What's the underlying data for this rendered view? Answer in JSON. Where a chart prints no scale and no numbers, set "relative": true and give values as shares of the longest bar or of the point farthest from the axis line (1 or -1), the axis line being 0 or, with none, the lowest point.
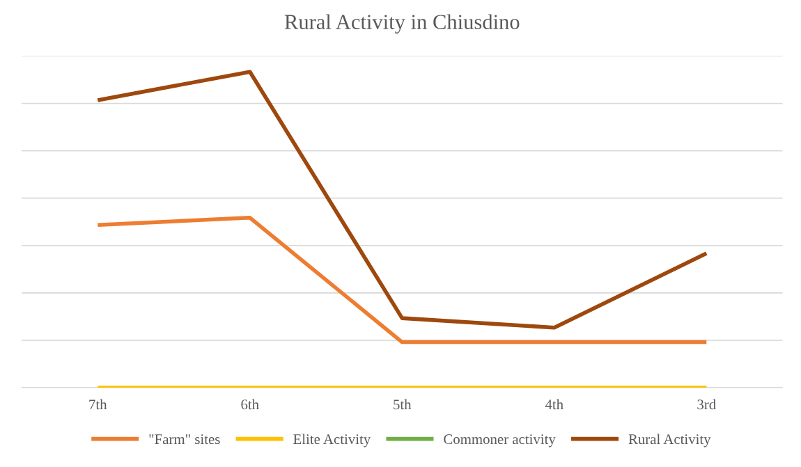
{
  "chart_data": {
    "type": "line",
    "title": "Rural Activity in Chiusdino",
    "relative": true,
    "grid": "y",
    "legend": "bottom",
    "marker": "none",
    "line_style": "solid",
    "categories": [
      "7th",
      "6th",
      "5th",
      "4th",
      "3rd"
    ],
    "series": [
      {
        "name": "\"Farm\" sites",
        "color": "#ed7d31",
        "values": [
          0.515,
          0.538,
          0.144,
          0.144,
          0.144
        ]
      },
      {
        "name": "Elite Activity",
        "color": "#ffc000",
        "values": [
          0,
          0,
          0,
          0,
          0
        ]
      },
      {
        "name": "Commoner activity",
        "color": "#70ad47",
        "values": [
          null,
          null,
          null,
          null,
          null
        ]
      },
      {
        "name": "Rural Activity",
        "color": "#9e480e",
        "values": [
          0.91,
          1,
          0.22,
          0.19,
          0.425
        ]
      }
    ]
  }
}
